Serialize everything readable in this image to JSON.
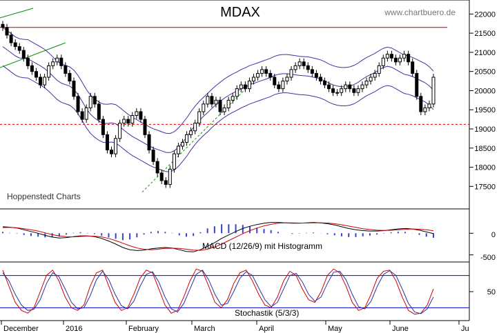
{
  "header": {
    "title": "MDAX",
    "watermark": "www.chartbuero.de",
    "source_label": "Hoppenstedt Charts"
  },
  "panels": {
    "macd": {
      "label": "MACD (12/26/9) mit Histogramm",
      "ticks": [
        "0",
        "-500"
      ]
    },
    "stoch": {
      "label": "Stochastik (5/3/3)",
      "ticks": [
        "50"
      ]
    }
  },
  "chart_data": {
    "type": "candlestick",
    "title": "MDAX",
    "y_ticks": [
      22000,
      21500,
      21000,
      20500,
      20000,
      19500,
      19000,
      18500,
      18000,
      17500
    ],
    "ylim": [
      17200,
      22150
    ],
    "months": [
      "December",
      "2016",
      "February",
      "March",
      "April",
      "May",
      "June",
      "Ju"
    ],
    "resistance_level": 21650,
    "support_level": 19120,
    "close_series": [
      21650,
      21450,
      21250,
      21150,
      21050,
      20850,
      20650,
      20500,
      20350,
      20150,
      20350,
      20650,
      20750,
      20850,
      20650,
      20450,
      20250,
      19850,
      19450,
      19250,
      19550,
      19850,
      19650,
      19250,
      18850,
      18450,
      18350,
      18750,
      19150,
      19250,
      19150,
      19350,
      19450,
      19250,
      18850,
      18450,
      18150,
      17850,
      17650,
      17550,
      17950,
      18350,
      18550,
      18650,
      18850,
      18950,
      19150,
      19450,
      19650,
      19850,
      19650,
      19750,
      19450,
      19550,
      19750,
      19850,
      20050,
      20150,
      20050,
      20250,
      20350,
      20450,
      20550,
      20450,
      20350,
      20150,
      20050,
      20250,
      20350,
      20550,
      20650,
      20750,
      20650,
      20550,
      20450,
      20350,
      20250,
      20150,
      20050,
      19950,
      19950,
      20050,
      20150,
      20050,
      19950,
      20050,
      20150,
      20250,
      20350,
      20450,
      20650,
      20850,
      20950,
      20850,
      20750,
      20850,
      20950,
      20750,
      20450,
      19850,
      19450,
      19550,
      19650,
      20350
    ],
    "macd": {
      "range": [
        -600,
        450
      ],
      "macd_line": [
        150,
        140,
        120,
        80,
        40,
        0,
        -50,
        -90,
        -110,
        -100,
        -80,
        -60,
        -60,
        -80,
        -120,
        -180,
        -250,
        -330,
        -380,
        -400,
        -390,
        -360,
        -340,
        -330,
        -340,
        -380,
        -420,
        -430,
        -380,
        -300,
        -220,
        -120,
        -40,
        40,
        110,
        160,
        200,
        230,
        250,
        250,
        240,
        230,
        230,
        240,
        250,
        240,
        220,
        190,
        150,
        110,
        80,
        60,
        50,
        50,
        60,
        80,
        100,
        110,
        100,
        70,
        30,
        -10
      ],
      "signal_line": [
        130,
        135,
        125,
        105,
        80,
        50,
        10,
        -30,
        -60,
        -80,
        -85,
        -75,
        -65,
        -68,
        -85,
        -120,
        -170,
        -230,
        -290,
        -340,
        -370,
        -380,
        -370,
        -350,
        -345,
        -350,
        -370,
        -390,
        -395,
        -370,
        -320,
        -250,
        -170,
        -90,
        -10,
        60,
        120,
        170,
        205,
        230,
        240,
        240,
        235,
        235,
        240,
        242,
        235,
        220,
        195,
        165,
        135,
        105,
        85,
        70,
        65,
        68,
        78,
        90,
        98,
        94,
        80,
        55
      ]
    },
    "stochastic": {
      "range": [
        0,
        100
      ],
      "upper_band": 80,
      "lower_band": 20,
      "k_line": [
        90,
        60,
        30,
        15,
        10,
        20,
        50,
        80,
        90,
        70,
        40,
        20,
        15,
        25,
        60,
        85,
        90,
        60,
        30,
        15,
        20,
        45,
        75,
        90,
        85,
        55,
        25,
        10,
        15,
        40,
        70,
        92,
        88,
        60,
        30,
        20,
        35,
        65,
        85,
        90,
        70,
        45,
        25,
        20,
        40,
        70,
        88,
        80,
        55,
        35,
        30,
        50,
        80,
        92,
        85,
        60,
        30,
        15,
        20,
        45,
        75,
        88,
        90,
        70,
        40,
        15,
        8,
        10,
        25,
        55
      ],
      "d_line": [
        85,
        70,
        45,
        25,
        15,
        17,
        35,
        65,
        85,
        78,
        55,
        30,
        18,
        20,
        42,
        72,
        88,
        72,
        45,
        24,
        18,
        32,
        60,
        82,
        87,
        68,
        40,
        18,
        12,
        28,
        55,
        82,
        90,
        72,
        45,
        25,
        28,
        50,
        75,
        87,
        80,
        57,
        35,
        22,
        30,
        55,
        80,
        84,
        68,
        45,
        32,
        40,
        65,
        86,
        88,
        72,
        45,
        22,
        18,
        32,
        60,
        82,
        89,
        80,
        55,
        28,
        12,
        9,
        18,
        40
      ]
    }
  }
}
